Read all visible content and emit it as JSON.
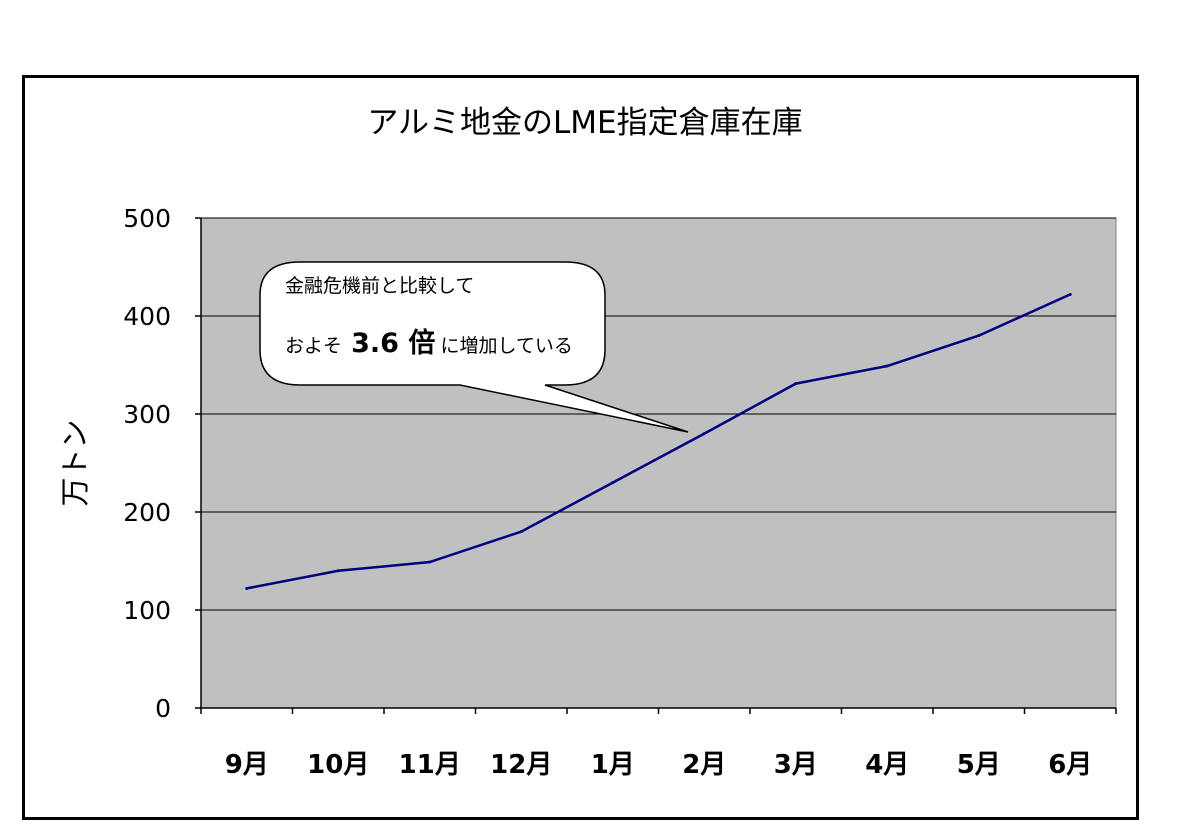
{
  "chart_data": {
    "type": "line",
    "title": "アルミ地金のLME指定倉庫在庫",
    "ylabel": "万トン",
    "xlabel": "",
    "categories": [
      "9月",
      "10月",
      "11月",
      "12月",
      "1月",
      "2月",
      "3月",
      "4月",
      "5月",
      "6月"
    ],
    "series": [
      {
        "values": [
          122,
          140,
          149,
          180,
          230,
          280,
          331,
          349,
          380,
          422
        ]
      }
    ],
    "ylim": [
      0,
      500
    ],
    "yticks": [
      0,
      100,
      200,
      300,
      400,
      500
    ],
    "grid": true,
    "legend": "none",
    "colors": {
      "line": "#000080",
      "plot_bg": "#c0c0c0",
      "grid": "#000000"
    },
    "annotation": {
      "line1": "金融危機前と比較して",
      "line2_prefix": "およそ",
      "line2_value": "3.6 倍",
      "line2_suffix": "に増加している"
    }
  }
}
